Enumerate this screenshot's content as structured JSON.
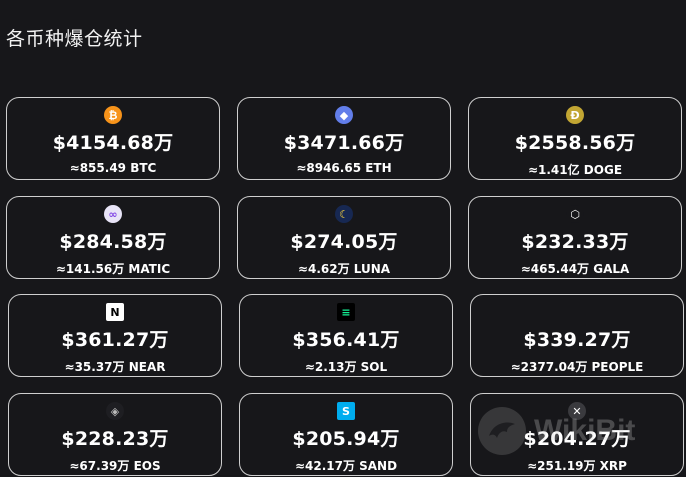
{
  "title": "各币种爆仓统计",
  "watermark": {
    "text": "WikiBit"
  },
  "cards": [
    {
      "amount": "$4154.68万",
      "qty": "≈855.49 BTC",
      "icon": "btc-icon",
      "icon_glyph": "₿",
      "color": "#f7931a",
      "fg": "#ffffff"
    },
    {
      "amount": "$3471.66万",
      "qty": "≈8946.65 ETH",
      "icon": "eth-icon",
      "icon_glyph": "◆",
      "color": "#627eea",
      "fg": "#ffffff"
    },
    {
      "amount": "$2558.56万",
      "qty": "≈1.41亿 DOGE",
      "icon": "doge-icon",
      "icon_glyph": "Ð",
      "color": "#c2a633",
      "fg": "#ffffff"
    },
    {
      "amount": "$284.58万",
      "qty": "≈141.56万 MATIC",
      "icon": "matic-icon",
      "icon_glyph": "∞",
      "color": "#e8e4f7",
      "fg": "#8247e5"
    },
    {
      "amount": "$274.05万",
      "qty": "≈4.62万 LUNA",
      "icon": "luna-icon",
      "icon_glyph": "☾",
      "color": "#172852",
      "fg": "#ffd83d"
    },
    {
      "amount": "$232.33万",
      "qty": "≈465.44万 GALA",
      "icon": "gala-icon",
      "icon_glyph": "⬡",
      "color": "#17171a",
      "fg": "#ffffff"
    },
    {
      "amount": "$361.27万",
      "qty": "≈35.37万 NEAR",
      "icon": "near-icon",
      "icon_glyph": "N",
      "color": "#ffffff",
      "fg": "#000000"
    },
    {
      "amount": "$356.41万",
      "qty": "≈2.13万 SOL",
      "icon": "sol-icon",
      "icon_glyph": "≡",
      "color": "#000000",
      "fg": "#14f195"
    },
    {
      "amount": "$339.27万",
      "qty": "≈2377.04万 PEOPLE",
      "icon": "",
      "icon_glyph": "",
      "color": "",
      "fg": ""
    },
    {
      "amount": "$228.23万",
      "qty": "≈67.39万 EOS",
      "icon": "eos-icon",
      "icon_glyph": "◈",
      "color": "#1e1e22",
      "fg": "#bbbbbb"
    },
    {
      "amount": "$205.94万",
      "qty": "≈42.17万 SAND",
      "icon": "sand-icon",
      "icon_glyph": "S",
      "color": "#00adef",
      "fg": "#ffffff"
    },
    {
      "amount": "$204.27万",
      "qty": "≈251.19万 XRP",
      "icon": "xrp-icon",
      "icon_glyph": "✕",
      "color": "#3a3a3e",
      "fg": "#ffffff"
    }
  ]
}
